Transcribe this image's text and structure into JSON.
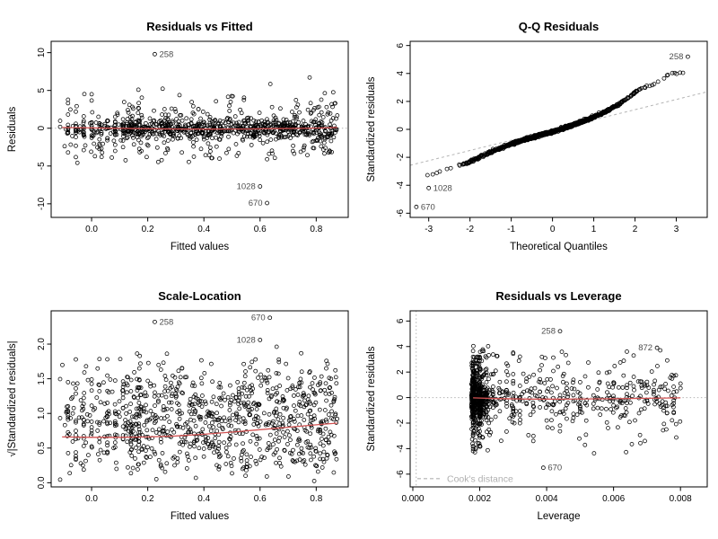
{
  "figure": {
    "kind": "r-regression-diagnostics",
    "background": "#ffffff"
  },
  "colors": {
    "point_stroke": "#000000",
    "smooth_line": "#d25252",
    "reference_line": "#b4b4b4",
    "outlier_label": "#4d4d4d",
    "cooks_legend": "#b0b0b0",
    "axis": "#000000"
  },
  "chart_data": [
    {
      "id": "residuals-vs-fitted",
      "type": "scatter",
      "title": "Residuals vs Fitted",
      "xlabel": "Fitted values",
      "ylabel": "Residuals",
      "xlim": [
        -0.144,
        0.914
      ],
      "ylim": [
        -11.8,
        11.5
      ],
      "xticks": {
        "values": [
          0.0,
          0.2,
          0.4,
          0.6,
          0.8
        ],
        "labels": [
          "0.0",
          "0.2",
          "0.4",
          "0.6",
          "0.8"
        ]
      },
      "yticks": {
        "values": [
          -10,
          -5,
          0,
          5,
          10
        ],
        "labels": [
          "-10",
          "-5",
          "0",
          "5",
          "10"
        ]
      },
      "zero_line": {
        "y": 0,
        "style": "dotted"
      },
      "smooth_line": [
        [
          -0.105,
          0.1
        ],
        [
          0.0,
          0.04
        ],
        [
          0.1,
          -0.02
        ],
        [
          0.2,
          -0.07
        ],
        [
          0.3,
          -0.1
        ],
        [
          0.42,
          -0.12
        ],
        [
          0.55,
          -0.1
        ],
        [
          0.65,
          -0.06
        ],
        [
          0.75,
          -0.02
        ],
        [
          0.82,
          0.03
        ],
        [
          0.875,
          0.1
        ]
      ],
      "labeled_points": [
        {
          "label": "258",
          "x": 0.225,
          "y": 9.8,
          "label_side": "right"
        },
        {
          "label": "1028",
          "x": 0.6,
          "y": -7.7,
          "label_side": "left"
        },
        {
          "label": "670",
          "x": 0.625,
          "y": -9.9,
          "label_side": "left"
        }
      ],
      "cloud": {
        "kind": "residuals",
        "n": 950,
        "seed": 101,
        "x_range": [
          -0.105,
          0.875
        ],
        "left_frac": 0.22,
        "y_sd_core": 0.62,
        "y_sd_tail": 2.15,
        "y_min": -4.6,
        "y_max": 7.0
      }
    },
    {
      "id": "qq-residuals",
      "type": "scatter",
      "title": "Q-Q Residuals",
      "xlabel": "Theoretical Quantiles",
      "ylabel": "Standardized residuals",
      "xlim": [
        -3.45,
        3.75
      ],
      "ylim": [
        -6.3,
        6.3
      ],
      "xticks": {
        "values": [
          -3,
          -2,
          -1,
          0,
          1,
          2,
          3
        ],
        "labels": [
          "-3",
          "-2",
          "-1",
          "0",
          "1",
          "2",
          "3"
        ]
      },
      "yticks": {
        "values": [
          -6,
          -4,
          -2,
          0,
          2,
          4,
          6
        ],
        "labels": [
          "-6",
          "-4",
          "-2",
          "0",
          "2",
          "4",
          "6"
        ]
      },
      "ref_line": {
        "slope": 0.73,
        "intercept": -0.05,
        "style": "dashed"
      },
      "qq_anchors": [
        [
          -3.4,
          -3.45
        ],
        [
          -3.0,
          -3.3
        ],
        [
          -2.85,
          -3.2
        ],
        [
          -2.6,
          -2.95
        ],
        [
          -2.3,
          -2.6
        ],
        [
          -2.0,
          -2.3
        ],
        [
          -1.7,
          -1.9
        ],
        [
          -1.4,
          -1.5
        ],
        [
          -1.1,
          -1.15
        ],
        [
          -0.8,
          -0.85
        ],
        [
          -0.5,
          -0.58
        ],
        [
          -0.2,
          -0.32
        ],
        [
          0.0,
          -0.18
        ],
        [
          0.3,
          0.12
        ],
        [
          0.6,
          0.42
        ],
        [
          0.9,
          0.75
        ],
        [
          1.2,
          1.15
        ],
        [
          1.5,
          1.6
        ],
        [
          1.8,
          2.2
        ],
        [
          2.0,
          2.65
        ],
        [
          2.2,
          2.95
        ],
        [
          2.4,
          3.2
        ],
        [
          2.6,
          3.45
        ],
        [
          2.8,
          3.9
        ],
        [
          3.0,
          4.05
        ],
        [
          3.3,
          4.15
        ]
      ],
      "labeled_points": [
        {
          "label": "258",
          "x": 3.28,
          "y": 5.2,
          "label_side": "left"
        },
        {
          "label": "1028",
          "x": -3.0,
          "y": -4.2,
          "label_side": "right"
        },
        {
          "label": "670",
          "x": -3.3,
          "y": -5.55,
          "label_side": "right"
        }
      ],
      "cloud": {
        "kind": "qq",
        "n": 1050,
        "seed": 202,
        "jitter": 0.045
      }
    },
    {
      "id": "scale-location",
      "type": "scatter",
      "title": "Scale-Location",
      "xlabel": "Fitted values",
      "ylabel": "√|Standardized residuals|",
      "xlim": [
        -0.144,
        0.914
      ],
      "ylim": [
        -0.06,
        2.48
      ],
      "xticks": {
        "values": [
          0.0,
          0.2,
          0.4,
          0.6,
          0.8
        ],
        "labels": [
          "0.0",
          "0.2",
          "0.4",
          "0.6",
          "0.8"
        ]
      },
      "yticks": {
        "values": [
          0.0,
          0.5,
          1.0,
          1.5,
          2.0
        ],
        "labels": [
          "0.0",
          "0.5",
          "1.0",
          "1.5",
          "2.0"
        ]
      },
      "smooth_line": [
        [
          -0.105,
          0.66
        ],
        [
          0.0,
          0.655
        ],
        [
          0.1,
          0.655
        ],
        [
          0.2,
          0.66
        ],
        [
          0.3,
          0.675
        ],
        [
          0.4,
          0.7
        ],
        [
          0.5,
          0.73
        ],
        [
          0.6,
          0.765
        ],
        [
          0.7,
          0.8
        ],
        [
          0.8,
          0.835
        ],
        [
          0.875,
          0.86
        ]
      ],
      "labeled_points": [
        {
          "label": "258",
          "x": 0.225,
          "y": 2.32,
          "label_side": "right"
        },
        {
          "label": "670",
          "x": 0.635,
          "y": 2.38,
          "label_side": "left"
        },
        {
          "label": "1028",
          "x": 0.6,
          "y": 2.06,
          "label_side": "left"
        }
      ],
      "cloud": {
        "kind": "sqrt",
        "n": 950,
        "seed": 303,
        "x_range": [
          -0.105,
          0.875
        ],
        "left_frac": 0.22,
        "y_sigma": 1.25,
        "y_max": 2.44
      }
    },
    {
      "id": "residuals-vs-leverage",
      "type": "scatter",
      "title": "Residuals vs Leverage",
      "xlabel": "Leverage",
      "ylabel": "Standardized residuals",
      "xlim": [
        -8e-05,
        0.0088
      ],
      "ylim": [
        -7.0,
        6.8
      ],
      "xticks": {
        "values": [
          0.0,
          0.002,
          0.004,
          0.006,
          0.008
        ],
        "labels": [
          "0.000",
          "0.002",
          "0.004",
          "0.006",
          "0.008"
        ]
      },
      "yticks": {
        "values": [
          -6,
          -4,
          -2,
          0,
          2,
          4,
          6
        ],
        "labels": [
          "-6",
          "-4",
          "-2",
          "0",
          "2",
          "4",
          "6"
        ]
      },
      "zero_line": {
        "y": 0,
        "style": "dotted"
      },
      "vline": {
        "x": 0.0001,
        "style": "dotted"
      },
      "smooth_line": [
        [
          0.0018,
          -0.02
        ],
        [
          0.0025,
          -0.08
        ],
        [
          0.0035,
          -0.12
        ],
        [
          0.0045,
          -0.12
        ],
        [
          0.0055,
          -0.1
        ],
        [
          0.0065,
          -0.07
        ],
        [
          0.0075,
          -0.04
        ],
        [
          0.008,
          -0.02
        ]
      ],
      "legend": {
        "label": "Cook's distance",
        "style": "dashed"
      },
      "labeled_points": [
        {
          "label": "258",
          "x": 0.0044,
          "y": 5.2,
          "label_side": "left"
        },
        {
          "label": "872",
          "x": 0.0073,
          "y": 3.9,
          "label_side": "left"
        },
        {
          "label": "670",
          "x": 0.0039,
          "y": -5.5,
          "label_side": "right"
        }
      ],
      "cloud": {
        "kind": "leverage",
        "n": 950,
        "seed": 404,
        "x_min": 0.00175,
        "x_max": 0.008,
        "y_sd_core": 0.8,
        "y_sd_tail": 1.9,
        "y_min": -4.4,
        "y_max": 4.05
      }
    }
  ]
}
